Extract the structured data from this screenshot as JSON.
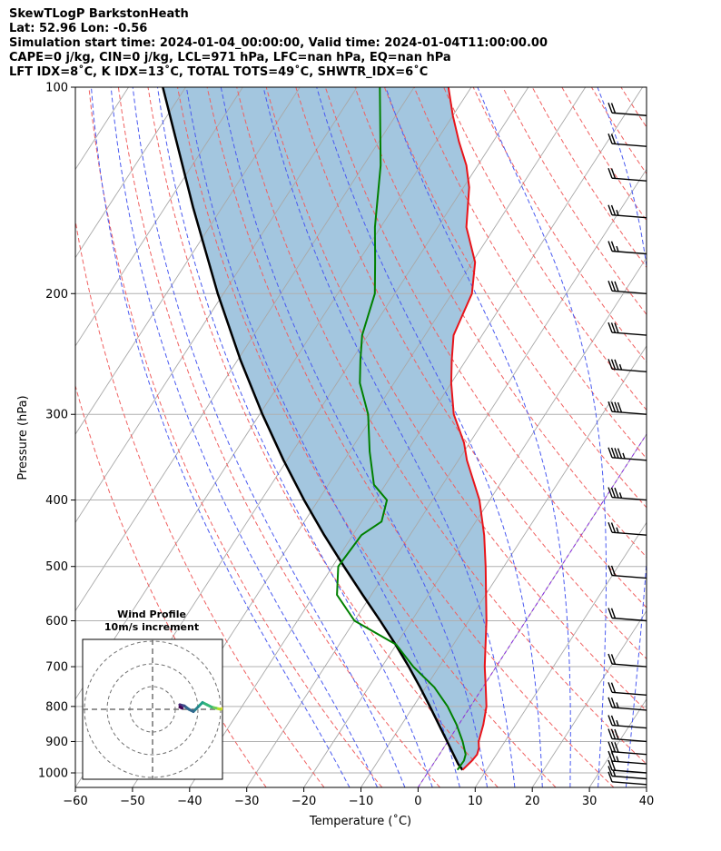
{
  "header": {
    "line1": "SkewTLogP BarkstonHeath",
    "line2": "Lat: 52.96   Lon: -0.56",
    "line3": "Simulation start time: 2024-01-04_00:00:00, Valid time: 2024-01-04T11:00:00.00",
    "line4": "CAPE=0 j/kg, CIN=0 j/kg, LCL=971 hPa, LFC=nan hPa, EQ=nan hPa",
    "line5": "LFT IDX=8˚C, K IDX=13˚C, TOTAL TOTS=49˚C, SHWTR_IDX=6˚C"
  },
  "hodograph": {
    "title": "Wind Profile",
    "subtitle": "10m/s increment"
  },
  "colors": {
    "temperature": "#e8141a",
    "dewpoint": "#008000",
    "parcel": "#000000",
    "shade": "#a3c6df",
    "dry_adiabat": "#f06060",
    "moist_adiabat": "#4a5af0",
    "mixing_ratio": "#808080",
    "isotherm_zero": "#8a2be2"
  },
  "chart_data": {
    "type": "skewt",
    "xlabel": "Temperature (˚C)",
    "ylabel": "Pressure (hPa)",
    "xlim": [
      -60,
      40
    ],
    "ylim": [
      1050,
      100
    ],
    "y_scale": "log",
    "x_ticks": [
      "−60",
      "−50",
      "−40",
      "−30",
      "−20",
      "−10",
      "0",
      "10",
      "20",
      "30",
      "40"
    ],
    "y_ticks": [
      "100",
      "200",
      "300",
      "400",
      "500",
      "600",
      "700",
      "800",
      "900",
      "1000"
    ],
    "grid": true,
    "temperature_profile": {
      "p": [
        990,
        960,
        940,
        920,
        900,
        850,
        800,
        750,
        700,
        600,
        500,
        450,
        400,
        350,
        330,
        300,
        270,
        250,
        230,
        200,
        180,
        160,
        140,
        130,
        120,
        110,
        100
      ],
      "t": [
        5.8,
        6.4,
        6.6,
        6.2,
        5.4,
        4.3,
        2.8,
        0.5,
        -2.0,
        -6.9,
        -13.2,
        -17.0,
        -21.8,
        -28.5,
        -31.0,
        -36.0,
        -40.0,
        -42.5,
        -45.0,
        -46.5,
        -49.5,
        -55.0,
        -59.0,
        -62.0,
        -66.0,
        -70.0,
        -74.0
      ]
    },
    "dewpoint_profile": {
      "p": [
        990,
        960,
        940,
        900,
        850,
        800,
        750,
        700,
        650,
        600,
        550,
        500,
        450,
        430,
        400,
        380,
        340,
        300,
        270,
        250,
        230,
        200,
        180,
        160,
        130,
        100
      ],
      "t": [
        4.9,
        5.0,
        4.6,
        2.6,
        -0.4,
        -4.0,
        -8.5,
        -14.5,
        -20.0,
        -30.0,
        -36.0,
        -39.0,
        -38.5,
        -36.5,
        -38.0,
        -42.0,
        -46.5,
        -51.0,
        -56.0,
        -58.5,
        -61.0,
        -63.5,
        -67.0,
        -71.0,
        -77.0,
        -86.0
      ]
    },
    "parcel_profile": {
      "p": [
        990,
        971,
        950,
        900,
        850,
        800,
        750,
        700,
        650,
        600,
        550,
        500,
        450,
        400,
        350,
        300,
        250,
        200,
        150,
        100
      ],
      "t": [
        5.8,
        4.4,
        3.1,
        -0.1,
        -3.5,
        -7.1,
        -11.0,
        -15.3,
        -20.1,
        -25.5,
        -31.5,
        -38.0,
        -45.0,
        -52.5,
        -60.6,
        -69.5,
        -79.5,
        -91.0,
        -105.0,
        -124.0
      ]
    },
    "wind_barbs": {
      "p": [
        1040,
        1020,
        1000,
        970,
        940,
        900,
        860,
        810,
        770,
        700,
        600,
        520,
        450,
        400,
        350,
        300,
        260,
        230,
        200,
        175,
        155,
        137,
        122,
        110
      ],
      "speed_kt": [
        10,
        15,
        20,
        25,
        30,
        30,
        25,
        25,
        20,
        20,
        20,
        20,
        25,
        35,
        45,
        40,
        35,
        30,
        30,
        25,
        25,
        20,
        20,
        20
      ]
    },
    "hodograph_trace": {
      "u": [
        16,
        14,
        12,
        10,
        8,
        6,
        4,
        2,
        0,
        -2,
        -4,
        -6,
        -5,
        -6
      ],
      "v": [
        2,
        1,
        0,
        0.5,
        1,
        2,
        3,
        1,
        -1,
        0,
        1.5,
        2,
        0.5,
        1
      ]
    }
  }
}
